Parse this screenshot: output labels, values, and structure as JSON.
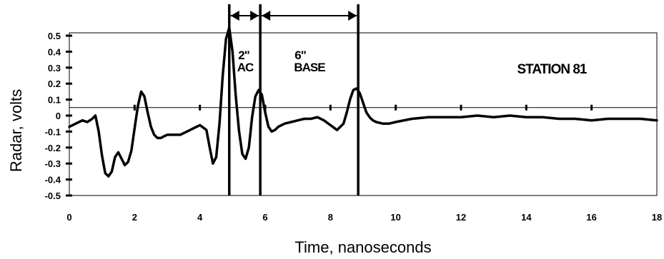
{
  "chart_data": {
    "type": "line",
    "title": "",
    "xlabel": "Time, nanoseconds",
    "ylabel": "Radar, volts",
    "xlim": [
      0,
      18
    ],
    "ylim": [
      -0.5,
      0.5
    ],
    "x_ticks": [
      "0",
      "2",
      "4",
      "6",
      "8",
      "10",
      "12",
      "14",
      "16",
      "18"
    ],
    "y_ticks": [
      "0.5",
      "0.4",
      "0.3",
      "0.2",
      "0.1",
      "0",
      "-0.1",
      "-0.2",
      "-0.3",
      "-0.4",
      "-0.5"
    ],
    "zero_line": 0.05,
    "grid": false,
    "series": [
      {
        "name": "",
        "x": [
          0,
          0.2,
          0.4,
          0.55,
          0.7,
          0.8,
          0.9,
          1.0,
          1.1,
          1.2,
          1.3,
          1.4,
          1.5,
          1.6,
          1.7,
          1.8,
          1.9,
          2.0,
          2.1,
          2.2,
          2.3,
          2.4,
          2.5,
          2.6,
          2.7,
          2.8,
          2.9,
          3.0,
          3.2,
          3.4,
          3.6,
          3.8,
          4.0,
          4.2,
          4.3,
          4.4,
          4.5,
          4.6,
          4.7,
          4.8,
          4.9,
          5.0,
          5.1,
          5.2,
          5.3,
          5.4,
          5.5,
          5.6,
          5.7,
          5.8,
          5.9,
          6.0,
          6.1,
          6.2,
          6.3,
          6.4,
          6.6,
          6.8,
          7.0,
          7.2,
          7.4,
          7.6,
          7.8,
          8.0,
          8.2,
          8.4,
          8.5,
          8.6,
          8.7,
          8.8,
          8.9,
          9.0,
          9.1,
          9.2,
          9.3,
          9.4,
          9.6,
          9.8,
          10.0,
          10.5,
          11.0,
          11.5,
          12.0,
          12.5,
          13.0,
          13.5,
          14.0,
          14.5,
          15.0,
          15.5,
          16.0,
          16.5,
          17.0,
          17.5,
          18.0
        ],
        "y": [
          -0.07,
          -0.05,
          -0.03,
          -0.04,
          -0.02,
          0.0,
          -0.1,
          -0.25,
          -0.36,
          -0.38,
          -0.35,
          -0.26,
          -0.23,
          -0.27,
          -0.31,
          -0.29,
          -0.22,
          -0.08,
          0.06,
          0.15,
          0.12,
          0.02,
          -0.07,
          -0.12,
          -0.14,
          -0.14,
          -0.13,
          -0.12,
          -0.12,
          -0.12,
          -0.1,
          -0.08,
          -0.06,
          -0.09,
          -0.2,
          -0.3,
          -0.26,
          -0.05,
          0.25,
          0.48,
          0.55,
          0.4,
          0.12,
          -0.1,
          -0.24,
          -0.27,
          -0.2,
          -0.01,
          0.12,
          0.16,
          0.13,
          0.02,
          -0.07,
          -0.1,
          -0.09,
          -0.07,
          -0.05,
          -0.04,
          -0.03,
          -0.02,
          -0.02,
          -0.01,
          -0.03,
          -0.06,
          -0.09,
          -0.05,
          0.02,
          0.1,
          0.16,
          0.17,
          0.14,
          0.08,
          0.02,
          -0.01,
          -0.03,
          -0.04,
          -0.05,
          -0.05,
          -0.04,
          -0.02,
          -0.01,
          -0.01,
          -0.01,
          0.0,
          -0.01,
          0.0,
          -0.01,
          -0.01,
          -0.02,
          -0.02,
          -0.03,
          -0.02,
          -0.02,
          -0.02,
          -0.03
        ]
      }
    ],
    "markers": [
      {
        "name": "ac-top",
        "x": 4.9
      },
      {
        "name": "ac-bottom-base-top",
        "x": 5.85
      },
      {
        "name": "base-bottom",
        "x": 8.85
      }
    ],
    "annotations": {
      "ac_thickness": "2\"",
      "ac_label": "AC",
      "base_thickness": "6\"",
      "base_label": "BASE",
      "station": "STATION 81"
    }
  }
}
